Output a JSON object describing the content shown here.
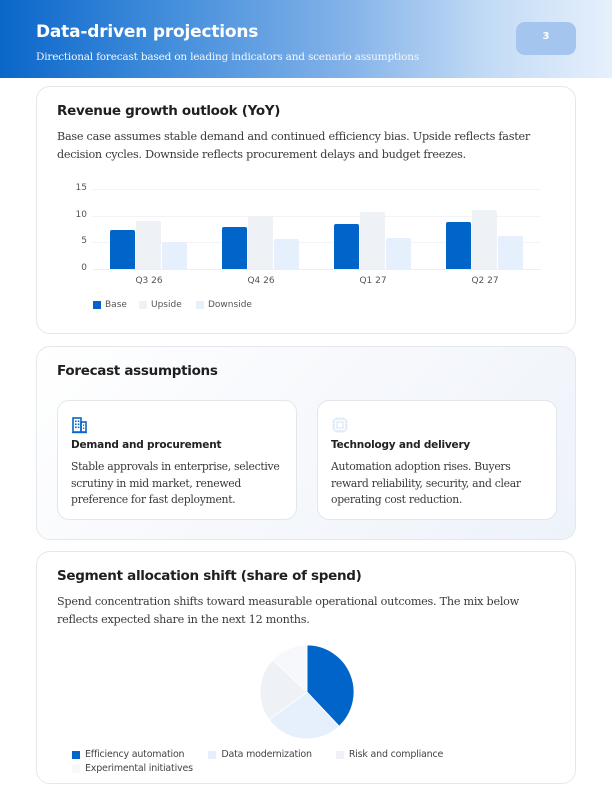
{
  "header": {
    "title": "Data-driven projections",
    "subtitle": "Directional forecast based on leading indicators and scenario assumptions",
    "page_number": "3"
  },
  "revenue": {
    "title": "Revenue growth outlook (YoY)",
    "description": "Base case assumes stable demand and continued efficiency bias. Upside reflects faster decision cycles. Downside reflects procurement delays and budget freezes."
  },
  "assumptions": {
    "title": "Forecast assumptions",
    "cards": [
      {
        "icon": "building-icon",
        "title": "Demand and procurement",
        "description": "Stable approvals in enterprise, selective scrutiny in mid market, renewed preference for fast deployment."
      },
      {
        "icon": "chip-icon",
        "title": "Technology and delivery",
        "description": "Automation adoption rises. Buyers reward reliability, security, and clear operating cost reduction."
      }
    ]
  },
  "segments": {
    "title": "Segment allocation shift (share of spend)",
    "description": "Spend concentration shifts toward measurable operational outcomes. The mix below reflects expected share in the next 12 months."
  },
  "colors": {
    "accent": "#0064c8",
    "upside": "#eef2f7",
    "downside": "#e5f0fc",
    "slice3": "#eef2f7",
    "slice4": "#f6f8fb"
  },
  "chart_data": [
    {
      "type": "bar",
      "title": "Revenue growth outlook (YoY)",
      "categories": [
        "Q3 26",
        "Q4 26",
        "Q1 27",
        "Q2 27"
      ],
      "series": [
        {
          "name": "Base",
          "values": [
            7.3,
            7.9,
            8.4,
            8.8
          ],
          "color": "#0064c8"
        },
        {
          "name": "Upside",
          "values": [
            9.0,
            10.0,
            10.6,
            11.0
          ],
          "color": "#eef2f7"
        },
        {
          "name": "Downside",
          "values": [
            5.1,
            5.6,
            5.8,
            6.2
          ],
          "color": "#e5f0fc"
        }
      ],
      "yticks": [
        "0",
        "5",
        "10",
        "15"
      ],
      "ylim": [
        0,
        15
      ],
      "xlabel": "",
      "ylabel": "",
      "grid": true,
      "legend_position": "bottom-left"
    },
    {
      "type": "pie",
      "title": "Segment allocation shift (share of spend)",
      "categories": [
        "Efficiency automation",
        "Data modernization",
        "Risk and compliance",
        "Experimental initiatives"
      ],
      "values": [
        38,
        27,
        22,
        13
      ],
      "colors": [
        "#0064c8",
        "#e5f0fc",
        "#eef2f7",
        "#f6f8fb"
      ],
      "legend_position": "bottom"
    }
  ]
}
